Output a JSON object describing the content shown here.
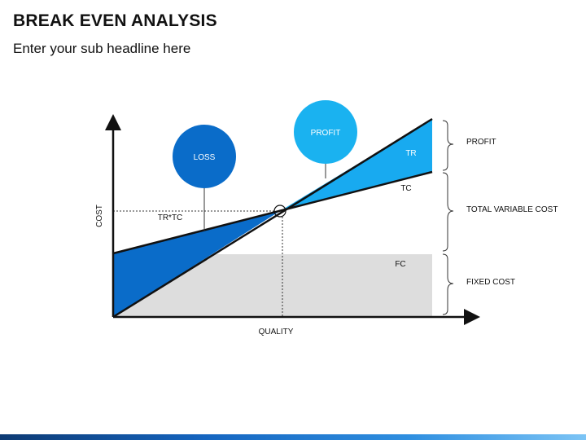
{
  "header": {
    "title": "BREAK EVEN ANALYSIS",
    "subtitle": "Enter your sub headline here"
  },
  "diagram": {
    "axes": {
      "y_label": "COST",
      "x_label": "QUALITY"
    },
    "line_labels": {
      "tr": "TR",
      "tc": "TC",
      "fc": "FC",
      "intersection": "TR*TC"
    },
    "bubbles": {
      "loss": "LOSS",
      "profit": "PROFIT"
    },
    "brackets": {
      "profit": "PROFIT",
      "variable": "TOTAL VARIABLE COST",
      "fixed": "FIXED COST"
    },
    "colors": {
      "loss_fill": "#0a6cc9",
      "loss_bubble": "#0a6cc9",
      "profit_fill": "#18aaf0",
      "profit_bubble": "#1ab2f0",
      "fixed_cost_fill": "#dddddd",
      "line": "#111111"
    }
  }
}
